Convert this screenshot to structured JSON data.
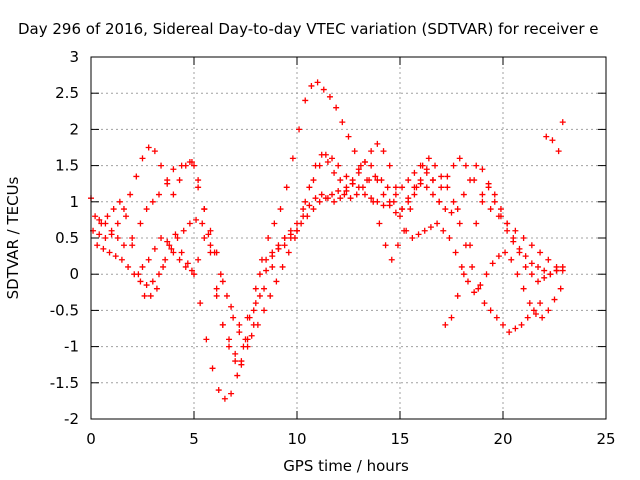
{
  "chart_data": {
    "type": "scatter",
    "title": "Day 296 of 2016, Sidereal Day-to-day VTEC variation (SDTVAR) for receiver e",
    "xlabel": "GPS time / hours",
    "ylabel": "SDTVAR / TECUs",
    "xlim": [
      0,
      25
    ],
    "ylim": [
      -2,
      3
    ],
    "xticks": [
      "0",
      "5",
      "10",
      "15",
      "20",
      "25"
    ],
    "yticks": [
      "-2",
      "-1.5",
      "-1",
      "-0.5",
      "0",
      "0.5",
      "1",
      "1.5",
      "2",
      "2.5",
      "3"
    ],
    "grid": true,
    "marker": "+",
    "color": "#ff0000",
    "series": [
      {
        "x": [
          0.0,
          0.2,
          0.4,
          0.7,
          1.0,
          1.3,
          1.6,
          2.0,
          2.4,
          2.7,
          3.0,
          3.3,
          3.7,
          4.0,
          4.4,
          4.8,
          5.0,
          5.2,
          5.5,
          5.8,
          6.1,
          6.4,
          6.8,
          7.2,
          7.6,
          8.0,
          8.4,
          8.8,
          9.1,
          9.4,
          9.7,
          10.0,
          10.4,
          10.8,
          11.1,
          11.4,
          11.7,
          12.0,
          12.4,
          12.7,
          13.0,
          13.3,
          13.6,
          13.9,
          14.2,
          14.5,
          14.8,
          15.1,
          15.4,
          15.7,
          16.0,
          16.3,
          16.6,
          17.0,
          17.3,
          17.6,
          17.9,
          18.2,
          18.6,
          19.0,
          19.4,
          19.8,
          20.2,
          20.6,
          21.0,
          21.4,
          21.8,
          22.2,
          22.6,
          22.9
        ],
        "y": [
          1.05,
          0.8,
          0.75,
          0.7,
          0.6,
          0.5,
          0.4,
          0.5,
          0.7,
          0.9,
          1.0,
          1.1,
          1.3,
          1.45,
          1.5,
          1.55,
          1.5,
          1.2,
          0.9,
          0.6,
          0.3,
          -0.1,
          -0.45,
          -0.7,
          -0.6,
          -0.4,
          -0.2,
          0.1,
          0.35,
          0.5,
          0.6,
          0.7,
          1.0,
          1.3,
          1.5,
          1.65,
          1.6,
          1.5,
          1.35,
          1.25,
          1.2,
          1.1,
          1.05,
          1.0,
          0.95,
          1.0,
          1.1,
          1.2,
          1.3,
          1.4,
          1.5,
          1.45,
          1.3,
          1.2,
          1.35,
          1.5,
          1.6,
          1.5,
          1.3,
          1.1,
          0.9,
          0.8,
          0.7,
          0.6,
          0.5,
          0.4,
          0.3,
          0.2,
          0.1,
          0.05
        ]
      },
      {
        "x": [
          0.1,
          0.4,
          0.7,
          1.0,
          1.3,
          1.6,
          1.9,
          2.2,
          2.5,
          2.8,
          3.1,
          3.4,
          3.7,
          4.0,
          4.3,
          4.6,
          4.9,
          5.2,
          5.5,
          5.8,
          6.1,
          6.4,
          6.7,
          7.0,
          7.3,
          7.6,
          7.9,
          8.2,
          8.5,
          8.8,
          9.1,
          9.4,
          9.7,
          10.0,
          10.3,
          10.6,
          10.9,
          11.2,
          11.5,
          11.8,
          12.1,
          12.4,
          12.7,
          13.0,
          13.3,
          13.6,
          13.9,
          14.2,
          14.5,
          14.8,
          15.1,
          15.4,
          15.7,
          16.0,
          16.3,
          16.6,
          16.9,
          17.2,
          17.5,
          17.8,
          18.1,
          18.4,
          18.7,
          19.0,
          19.3,
          19.6,
          19.9,
          20.2,
          20.5,
          20.8,
          21.1,
          21.4,
          21.7,
          22.0,
          22.3,
          22.6,
          22.9
        ],
        "y": [
          0.6,
          0.55,
          0.5,
          0.55,
          0.7,
          0.9,
          1.1,
          1.35,
          1.6,
          1.75,
          1.7,
          1.5,
          1.25,
          1.1,
          1.3,
          1.5,
          1.55,
          1.3,
          0.9,
          0.4,
          -0.2,
          -0.7,
          -1.0,
          -1.2,
          -1.25,
          -1.0,
          -0.7,
          -0.3,
          0.05,
          0.25,
          0.4,
          0.5,
          0.55,
          0.6,
          0.9,
          1.2,
          1.5,
          1.65,
          1.55,
          1.4,
          1.3,
          1.2,
          1.3,
          1.45,
          1.55,
          1.5,
          1.3,
          1.1,
          0.95,
          0.85,
          0.9,
          1.05,
          1.2,
          1.3,
          1.2,
          1.1,
          1.0,
          0.9,
          0.85,
          0.9,
          1.1,
          1.3,
          1.5,
          1.45,
          1.25,
          1.0,
          0.8,
          0.6,
          0.45,
          0.35,
          0.25,
          0.15,
          0.1,
          0.05,
          0.0,
          0.05,
          0.1
        ]
      },
      {
        "x": [
          0.3,
          0.6,
          0.9,
          1.2,
          1.5,
          1.8,
          2.1,
          2.4,
          2.7,
          3.0,
          3.3,
          3.6,
          3.9,
          4.2,
          4.5,
          4.8,
          5.1,
          5.4,
          5.7,
          6.0,
          6.3,
          6.6,
          6.9,
          7.2,
          7.5,
          7.8,
          8.1,
          8.4,
          8.7,
          9.0,
          9.3,
          9.6,
          9.9,
          10.2,
          10.5,
          10.8,
          11.1,
          11.4,
          11.7,
          12.0,
          12.3,
          12.6,
          12.9,
          13.2,
          13.5,
          13.8,
          14.1,
          14.4,
          14.7,
          15.0,
          15.3,
          15.6,
          15.9,
          16.2,
          16.5,
          16.8,
          17.1,
          17.4,
          17.7,
          18.0,
          18.3,
          18.6,
          18.9,
          19.2,
          19.5,
          19.8,
          20.1,
          20.4,
          20.7,
          21.0,
          21.3,
          21.6,
          21.9,
          22.2,
          22.5,
          22.8
        ],
        "y": [
          0.4,
          0.35,
          0.3,
          0.25,
          0.2,
          0.1,
          0.0,
          -0.1,
          -0.15,
          -0.1,
          0.0,
          0.2,
          0.35,
          0.5,
          0.6,
          0.7,
          0.75,
          0.7,
          0.55,
          0.3,
          0.0,
          -0.3,
          -0.6,
          -0.8,
          -0.9,
          -0.85,
          -0.7,
          -0.5,
          -0.3,
          -0.1,
          0.1,
          0.3,
          0.5,
          0.7,
          0.8,
          0.9,
          1.0,
          1.05,
          1.1,
          1.15,
          1.1,
          1.05,
          1.1,
          1.2,
          1.3,
          1.35,
          1.3,
          1.2,
          1.0,
          0.8,
          0.6,
          0.5,
          0.55,
          0.6,
          0.65,
          0.7,
          0.6,
          0.5,
          0.3,
          0.1,
          -0.1,
          -0.25,
          -0.15,
          0.0,
          0.15,
          0.25,
          0.3,
          0.2,
          0.0,
          -0.2,
          -0.4,
          -0.55,
          -0.6,
          -0.5,
          -0.35,
          -0.2
        ]
      },
      {
        "x": [
          0.5,
          0.8,
          1.1,
          1.4,
          1.7,
          2.0,
          2.3,
          2.6,
          2.9,
          3.2,
          3.5,
          3.8,
          4.1,
          4.4,
          4.7,
          5.0,
          5.3,
          5.6,
          5.9,
          6.2,
          6.5,
          6.8,
          7.1,
          7.4,
          7.7,
          8.0,
          8.3,
          8.6,
          8.9,
          9.2,
          9.5,
          9.8,
          10.1,
          10.4,
          10.7,
          11.0,
          11.3,
          11.6,
          11.9,
          12.2,
          12.5,
          12.8,
          13.1,
          13.4,
          13.7,
          14.0,
          14.3,
          14.6,
          14.9,
          15.2,
          15.5,
          15.8,
          16.1,
          16.4,
          16.7,
          17.0,
          17.3,
          17.6,
          17.9,
          18.2,
          18.5,
          18.8,
          19.1,
          19.4,
          19.7,
          20.0,
          20.3,
          20.6,
          20.9,
          21.2,
          21.5,
          21.8,
          22.1,
          22.4,
          22.7,
          22.9
        ],
        "y": [
          0.7,
          0.8,
          0.9,
          1.0,
          0.8,
          0.4,
          0.0,
          -0.3,
          -0.3,
          -0.2,
          0.1,
          0.4,
          0.55,
          0.3,
          0.15,
          0.0,
          -0.4,
          -0.9,
          -1.3,
          -1.6,
          -1.72,
          -1.65,
          -1.4,
          -1.0,
          -0.6,
          -0.2,
          0.2,
          0.5,
          0.7,
          0.9,
          1.2,
          1.6,
          2.0,
          2.4,
          2.6,
          2.65,
          2.55,
          2.45,
          2.3,
          2.1,
          1.9,
          1.7,
          1.5,
          1.3,
          1.0,
          0.7,
          0.4,
          0.2,
          0.4,
          0.6,
          0.9,
          1.2,
          1.5,
          1.6,
          1.5,
          1.35,
          1.2,
          1.0,
          0.7,
          0.4,
          0.1,
          -0.2,
          -0.4,
          -0.5,
          -0.6,
          -0.7,
          -0.8,
          -0.75,
          -0.7,
          -0.6,
          -0.5,
          -0.4,
          1.9,
          1.85,
          1.7,
          2.1
        ]
      },
      {
        "x": [
          2.5,
          2.8,
          3.1,
          3.4,
          3.7,
          4.0,
          4.3,
          4.6,
          4.9,
          5.2,
          5.5,
          5.8,
          6.1,
          6.4,
          6.7,
          7.0,
          7.3,
          7.6,
          7.9,
          8.2,
          8.5,
          8.8,
          9.1,
          9.4,
          9.7,
          10.0,
          10.3,
          10.6,
          10.9,
          11.2,
          11.5,
          11.8,
          12.1,
          12.4,
          12.7,
          13.0,
          13.3,
          13.6,
          13.9,
          14.2,
          14.5,
          14.8,
          15.1,
          15.4,
          15.7,
          16.0,
          16.3,
          16.6,
          16.9,
          17.2,
          17.5,
          17.8,
          18.1,
          18.4,
          18.7,
          19.0,
          19.3,
          19.6,
          19.9,
          20.2,
          20.5,
          20.8,
          21.1,
          21.4,
          21.7,
          22.0,
          22.3,
          22.6
        ],
        "y": [
          0.1,
          0.2,
          0.35,
          0.5,
          0.45,
          0.3,
          0.2,
          0.1,
          0.05,
          0.2,
          0.5,
          0.3,
          -0.3,
          -0.7,
          -0.9,
          -1.1,
          -1.2,
          -0.9,
          -0.5,
          0.0,
          0.2,
          0.3,
          0.35,
          0.4,
          0.5,
          0.6,
          0.8,
          0.95,
          1.05,
          1.1,
          1.05,
          1.0,
          1.05,
          1.15,
          1.25,
          1.4,
          1.55,
          1.7,
          1.8,
          1.7,
          1.5,
          1.2,
          0.9,
          1.0,
          1.1,
          1.25,
          1.4,
          1.3,
          1.0,
          -0.7,
          -0.6,
          -0.3,
          0.0,
          0.4,
          0.7,
          1.0,
          1.2,
          1.1,
          0.9,
          0.7,
          0.5,
          0.3,
          0.1,
          0.0,
          -0.1,
          -0.05,
          0.0,
          0.05
        ]
      }
    ]
  }
}
